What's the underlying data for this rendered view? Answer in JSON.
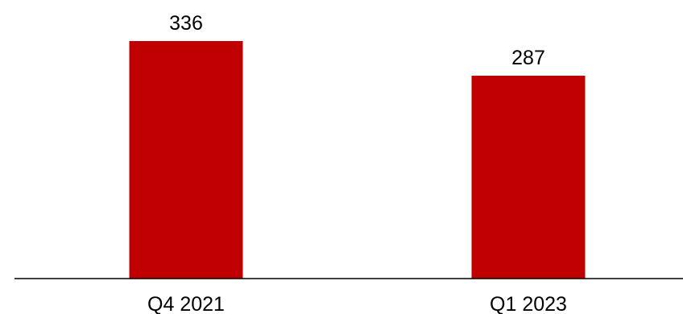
{
  "chart_data": {
    "type": "bar",
    "categories": [
      "Q4 2021",
      "Q1 2023"
    ],
    "values": [
      336,
      287
    ],
    "value_labels": [
      "336",
      "287"
    ],
    "bar_color": "#C00000",
    "axis_color": "#000000",
    "ylim": [
      0,
      350
    ],
    "grid": false,
    "legend": "none"
  }
}
